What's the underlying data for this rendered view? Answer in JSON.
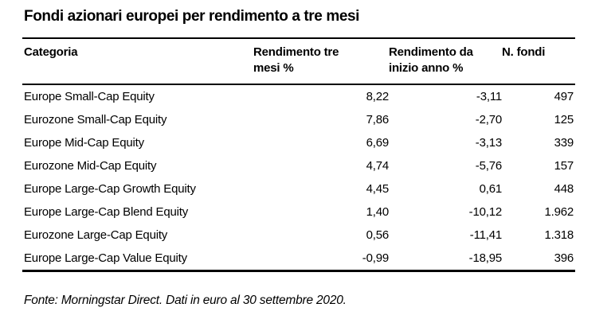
{
  "page": {
    "title": "Fondi azionari europei per rendimento a tre mesi",
    "source_note": "Fonte: Morningstar Direct. Dati in euro al 30 settembre 2020."
  },
  "table": {
    "columns": [
      {
        "label": "Categoria"
      },
      {
        "label": "Rendimento tre\nmesi %"
      },
      {
        "label": "Rendimento da\ninizio anno %"
      },
      {
        "label": "N. fondi"
      }
    ],
    "rows": [
      {
        "category": "Europe Small-Cap Equity",
        "three_month_return": "8,22",
        "ytd_return": "-3,11",
        "num_funds": "497"
      },
      {
        "category": "Eurozone Small-Cap Equity",
        "three_month_return": "7,86",
        "ytd_return": "-2,70",
        "num_funds": "125"
      },
      {
        "category": "Europe Mid-Cap Equity",
        "three_month_return": "6,69",
        "ytd_return": "-3,13",
        "num_funds": "339"
      },
      {
        "category": "Eurozone Mid-Cap Equity",
        "three_month_return": "4,74",
        "ytd_return": "-5,76",
        "num_funds": "157"
      },
      {
        "category": "Europe Large-Cap Growth Equity",
        "three_month_return": "4,45",
        "ytd_return": "0,61",
        "num_funds": "448"
      },
      {
        "category": "Europe Large-Cap Blend Equity",
        "three_month_return": "1,40",
        "ytd_return": "-10,12",
        "num_funds": "1.962"
      },
      {
        "category": "Eurozone Large-Cap Equity",
        "three_month_return": "0,56",
        "ytd_return": "-11,41",
        "num_funds": "1.318"
      },
      {
        "category": "Europe Large-Cap Value Equity",
        "three_month_return": "-0,99",
        "ytd_return": "-18,95",
        "num_funds": "396"
      }
    ]
  },
  "chart_data": {
    "type": "table",
    "title": "Fondi azionari europei per rendimento a tre mesi",
    "columns": [
      "Categoria",
      "Rendimento tre mesi %",
      "Rendimento da inizio anno %",
      "N. fondi"
    ],
    "rows": [
      [
        "Europe Small-Cap Equity",
        8.22,
        -3.11,
        497
      ],
      [
        "Eurozone Small-Cap Equity",
        7.86,
        -2.7,
        125
      ],
      [
        "Europe Mid-Cap Equity",
        6.69,
        -3.13,
        339
      ],
      [
        "Eurozone Mid-Cap Equity",
        4.74,
        -5.76,
        157
      ],
      [
        "Europe Large-Cap Growth Equity",
        4.45,
        0.61,
        448
      ],
      [
        "Europe Large-Cap Blend Equity",
        1.4,
        -10.12,
        1962
      ],
      [
        "Eurozone Large-Cap Equity",
        0.56,
        -11.41,
        1318
      ],
      [
        "Europe Large-Cap Value Equity",
        -0.99,
        -18.95,
        396
      ]
    ],
    "number_format": "italian (comma decimal, dot thousands)",
    "source": "Fonte: Morningstar Direct. Dati in euro al 30 settembre 2020.",
    "text_color": "#000000",
    "background_color": "#ffffff"
  }
}
